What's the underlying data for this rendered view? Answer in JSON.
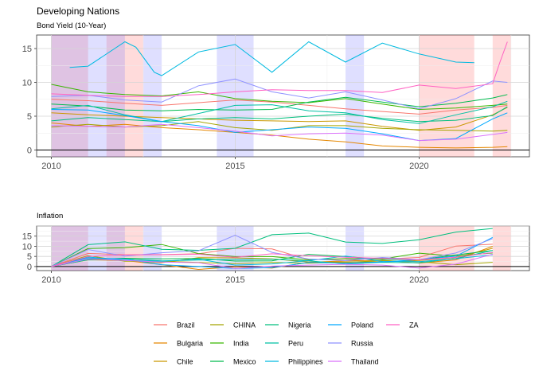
{
  "title": "Developing Nations",
  "chart_data": [
    {
      "type": "line",
      "subtitle": "Bond Yield (10-Year)",
      "x_range": [
        2009.6,
        2023.0
      ],
      "ylim": [
        -1,
        17
      ],
      "x_ticks": [
        2010,
        2015,
        2020
      ],
      "y_ticks": [
        0,
        5,
        10,
        15
      ],
      "grid": true,
      "shaded_periods": [
        {
          "color": "red",
          "start": 2010.0,
          "end": 2011.0
        },
        {
          "color": "blue",
          "start": 2010.0,
          "end": 2011.0
        },
        {
          "color": "blue",
          "start": 2011.0,
          "end": 2011.5
        },
        {
          "color": "red",
          "start": 2011.5,
          "end": 2012.0
        },
        {
          "color": "blue",
          "start": 2011.5,
          "end": 2012.0
        },
        {
          "color": "red",
          "start": 2012.0,
          "end": 2012.5
        },
        {
          "color": "blue",
          "start": 2012.5,
          "end": 2013.0
        },
        {
          "color": "blue",
          "start": 2014.5,
          "end": 2015.5
        },
        {
          "color": "blue",
          "start": 2018.0,
          "end": 2018.5
        },
        {
          "color": "red",
          "start": 2020.0,
          "end": 2021.5
        },
        {
          "color": "red",
          "start": 2022.0,
          "end": 2022.5
        }
      ],
      "series": [
        {
          "name": "Brazil",
          "color": "#F8766D",
          "x": [
            2010,
            2011,
            2012,
            2013,
            2014,
            2015,
            2016,
            2017,
            2018,
            2019,
            2020,
            2021,
            2022,
            2022.4
          ],
          "y": [
            7.5,
            7.3,
            6.9,
            6.6,
            7.0,
            7.4,
            7.1,
            6.6,
            6.1,
            5.7,
            5.3,
            5.9,
            6.3,
            6.6
          ]
        },
        {
          "name": "Bulgaria",
          "color": "#E58700",
          "x": [
            2010,
            2011,
            2012,
            2013,
            2014,
            2015,
            2016,
            2017,
            2018,
            2019,
            2020,
            2021,
            2022,
            2022.4
          ],
          "y": [
            4.0,
            3.5,
            3.8,
            3.3,
            3.0,
            2.6,
            2.2,
            1.6,
            1.2,
            0.6,
            0.4,
            0.3,
            0.4,
            0.5
          ]
        },
        {
          "name": "Chile",
          "color": "#C99800",
          "x": [
            2010,
            2011,
            2012,
            2013,
            2014,
            2015,
            2016,
            2017,
            2018,
            2019,
            2020,
            2021,
            2022,
            2022.4
          ],
          "y": [
            5.5,
            5.2,
            5.0,
            4.8,
            4.6,
            4.4,
            4.3,
            4.2,
            4.3,
            3.5,
            2.9,
            3.4,
            5.2,
            6.3
          ]
        },
        {
          "name": "CHINA",
          "color": "#A3A500",
          "x": [
            2010,
            2011,
            2012,
            2013,
            2014,
            2015,
            2016,
            2017,
            2018,
            2019,
            2020,
            2021,
            2022,
            2022.4
          ],
          "y": [
            3.4,
            3.8,
            3.4,
            3.6,
            4.2,
            3.3,
            2.9,
            3.6,
            3.6,
            3.2,
            3.0,
            2.9,
            2.8,
            2.9
          ]
        },
        {
          "name": "India",
          "color": "#39B600",
          "x": [
            2010,
            2011,
            2012,
            2013,
            2014,
            2015,
            2016,
            2017,
            2018,
            2019,
            2020,
            2021,
            2022,
            2022.4
          ],
          "y": [
            9.7,
            8.6,
            8.2,
            8.0,
            8.6,
            7.6,
            7.2,
            7.0,
            7.6,
            6.8,
            6.0,
            6.2,
            6.6,
            6.8
          ]
        },
        {
          "name": "Mexico",
          "color": "#00BB4E",
          "x": [
            2010,
            2011,
            2012,
            2013,
            2014,
            2015,
            2016,
            2017,
            2018,
            2019,
            2020,
            2021,
            2022,
            2022.4
          ],
          "y": [
            6.8,
            6.5,
            5.9,
            5.8,
            6.0,
            5.9,
            6.0,
            7.1,
            7.8,
            7.1,
            6.4,
            6.9,
            7.7,
            8.2
          ]
        },
        {
          "name": "Nigeria",
          "color": "#00BF7D",
          "x": [
            2010,
            2011,
            2012,
            2013,
            2014,
            2015,
            2016,
            2017,
            2018,
            2019,
            2020,
            2021,
            2022,
            2022.4
          ],
          "y": [
            4.3,
            4.8,
            4.5,
            4.2,
            4.6,
            4.8,
            4.6,
            5.0,
            5.3,
            4.7,
            4.2,
            4.4,
            5.1,
            6.4
          ]
        },
        {
          "name": "Peru",
          "color": "#00C1A3",
          "x": [
            2010,
            2011,
            2012,
            2013,
            2014,
            2015,
            2016,
            2017,
            2018,
            2019,
            2020,
            2021,
            2022,
            2022.4
          ],
          "y": [
            6.1,
            6.6,
            5.2,
            4.2,
            5.4,
            6.6,
            6.7,
            5.8,
            5.5,
            4.5,
            3.9,
            5.2,
            6.4,
            7.2
          ]
        },
        {
          "name": "Philippines",
          "color": "#00BAE0",
          "x": [
            2010.5,
            2011,
            2012,
            2012.3,
            2012.8,
            2013,
            2014,
            2015,
            2016,
            2017,
            2018,
            2019,
            2020,
            2021,
            2021.5
          ],
          "y": [
            12.2,
            12.4,
            16.0,
            15.2,
            11.5,
            11.0,
            14.5,
            15.6,
            11.5,
            16.0,
            13.0,
            15.8,
            14.2,
            13.0,
            12.9
          ]
        },
        {
          "name": "Poland",
          "color": "#00A9FF",
          "x": [
            2010,
            2011,
            2012,
            2013,
            2014,
            2015,
            2016,
            2017,
            2018,
            2019,
            2020,
            2021,
            2022,
            2022.4
          ],
          "y": [
            6.0,
            5.9,
            5.1,
            4.2,
            3.6,
            2.6,
            3.0,
            3.4,
            3.2,
            2.4,
            1.4,
            1.7,
            4.6,
            5.5
          ]
        },
        {
          "name": "Russia",
          "color": "#8F92FF",
          "x": [
            2010,
            2011,
            2012,
            2013,
            2014,
            2015,
            2016,
            2017,
            2018,
            2019,
            2020,
            2021,
            2022,
            2022.4
          ],
          "y": [
            7.9,
            8.1,
            7.4,
            7.1,
            9.5,
            10.5,
            8.6,
            7.7,
            8.6,
            7.4,
            6.1,
            7.6,
            10.2,
            10.0
          ]
        },
        {
          "name": "Thailand",
          "color": "#DB72FB",
          "x": [
            2010,
            2011,
            2012,
            2013,
            2014,
            2015,
            2016,
            2017,
            2018,
            2019,
            2020,
            2021,
            2022,
            2022.4
          ],
          "y": [
            3.6,
            3.5,
            3.4,
            3.8,
            3.3,
            2.8,
            2.1,
            2.4,
            2.5,
            2.2,
            1.4,
            1.6,
            2.3,
            2.6
          ]
        },
        {
          "name": "ZA",
          "color": "#FF61C3",
          "x": [
            2010,
            2011,
            2012,
            2013,
            2014,
            2015,
            2016,
            2017,
            2018,
            2019,
            2020,
            2021,
            2022,
            2022.2,
            2022.4
          ],
          "y": [
            8.3,
            8.1,
            7.9,
            7.9,
            8.2,
            8.6,
            8.9,
            8.8,
            8.8,
            8.5,
            9.6,
            9.1,
            9.8,
            13.0,
            16.0
          ]
        }
      ]
    },
    {
      "type": "line",
      "subtitle": "Inflation",
      "x_range": [
        2009.6,
        2023.0
      ],
      "ylim": [
        -2,
        20
      ],
      "x_ticks": [
        2010,
        2015,
        2020
      ],
      "y_ticks": [
        0,
        5,
        10,
        15
      ],
      "grid": true,
      "shaded_periods": [
        {
          "color": "red",
          "start": 2010.0,
          "end": 2011.0
        },
        {
          "color": "blue",
          "start": 2010.0,
          "end": 2011.0
        },
        {
          "color": "blue",
          "start": 2011.0,
          "end": 2011.5
        },
        {
          "color": "red",
          "start": 2011.5,
          "end": 2012.0
        },
        {
          "color": "blue",
          "start": 2011.5,
          "end": 2012.0
        },
        {
          "color": "red",
          "start": 2012.0,
          "end": 2012.5
        },
        {
          "color": "blue",
          "start": 2012.5,
          "end": 2013.0
        },
        {
          "color": "blue",
          "start": 2014.5,
          "end": 2015.5
        },
        {
          "color": "blue",
          "start": 2018.0,
          "end": 2018.5
        },
        {
          "color": "red",
          "start": 2020.0,
          "end": 2021.5
        },
        {
          "color": "red",
          "start": 2022.0,
          "end": 2022.5
        }
      ],
      "series": [
        {
          "name": "Brazil",
          "color": "#F8766D",
          "x": [
            2010,
            2011,
            2012,
            2013,
            2014,
            2015,
            2016,
            2017,
            2018,
            2019,
            2020,
            2021,
            2022
          ],
          "y": [
            0,
            6.5,
            5.8,
            5.9,
            6.3,
            9.0,
            8.7,
            3.4,
            3.7,
            3.7,
            4.5,
            10.1,
            11.0
          ]
        },
        {
          "name": "Bulgaria",
          "color": "#E58700",
          "x": [
            2010,
            2011,
            2012,
            2013,
            2014,
            2015,
            2016,
            2017,
            2018,
            2019,
            2020,
            2021,
            2022
          ],
          "y": [
            0,
            4.2,
            3.0,
            0.9,
            -1.4,
            -0.1,
            -0.8,
            2.1,
            2.8,
            3.1,
            1.7,
            3.3,
            10.0
          ]
        },
        {
          "name": "Chile",
          "color": "#C99800",
          "x": [
            2010,
            2011,
            2012,
            2013,
            2014,
            2015,
            2016,
            2017,
            2018,
            2019,
            2020,
            2021,
            2022
          ],
          "y": [
            0,
            3.3,
            3.0,
            1.9,
            4.4,
            4.3,
            3.8,
            2.2,
            2.3,
            2.3,
            3.0,
            4.5,
            9.0
          ]
        },
        {
          "name": "CHINA",
          "color": "#A3A500",
          "x": [
            2010,
            2011,
            2012,
            2013,
            2014,
            2015,
            2016,
            2017,
            2018,
            2019,
            2020,
            2021,
            2022
          ],
          "y": [
            0,
            5.4,
            2.6,
            2.6,
            2.0,
            1.4,
            2.0,
            1.6,
            2.1,
            2.9,
            2.4,
            0.9,
            2.1
          ]
        },
        {
          "name": "India",
          "color": "#39B600",
          "x": [
            2010,
            2011,
            2012,
            2013,
            2014,
            2015,
            2016,
            2017,
            2018,
            2019,
            2020,
            2021,
            2022
          ],
          "y": [
            0,
            8.9,
            9.3,
            10.9,
            6.4,
            4.9,
            4.9,
            3.3,
            3.9,
            3.7,
            6.6,
            5.1,
            6.7
          ]
        },
        {
          "name": "Mexico",
          "color": "#00BB4E",
          "x": [
            2010,
            2011,
            2012,
            2013,
            2014,
            2015,
            2016,
            2017,
            2018,
            2019,
            2020,
            2021,
            2022
          ],
          "y": [
            0,
            3.4,
            4.1,
            3.8,
            4.0,
            2.7,
            2.8,
            6.0,
            4.9,
            3.6,
            3.4,
            5.7,
            7.9
          ]
        },
        {
          "name": "Nigeria",
          "color": "#00BF7D",
          "x": [
            2010,
            2011,
            2012,
            2013,
            2014,
            2015,
            2016,
            2017,
            2018,
            2019,
            2020,
            2021,
            2022
          ],
          "y": [
            0,
            10.8,
            12.2,
            8.5,
            8.0,
            9.0,
            15.7,
            16.5,
            12.1,
            11.4,
            13.2,
            17.0,
            18.8
          ]
        },
        {
          "name": "Peru",
          "color": "#00C1A3",
          "x": [
            2010,
            2011,
            2012,
            2013,
            2014,
            2015,
            2016,
            2017,
            2018,
            2019,
            2020,
            2021,
            2022
          ],
          "y": [
            0,
            3.4,
            3.7,
            2.8,
            3.2,
            3.5,
            3.6,
            2.8,
            1.3,
            2.1,
            1.8,
            4.0,
            7.9
          ]
        },
        {
          "name": "Philippines",
          "color": "#00BAE0",
          "x": [
            2010,
            2011,
            2012,
            2013,
            2014,
            2015,
            2016,
            2017,
            2018,
            2019,
            2020,
            2021,
            2022
          ],
          "y": [
            0,
            4.7,
            3.0,
            2.6,
            3.6,
            0.7,
            1.3,
            2.9,
            5.2,
            2.5,
            2.4,
            3.9,
            5.8
          ]
        },
        {
          "name": "Poland",
          "color": "#00A9FF",
          "x": [
            2010,
            2011,
            2012,
            2013,
            2014,
            2015,
            2016,
            2017,
            2018,
            2019,
            2020,
            2021,
            2022
          ],
          "y": [
            0,
            4.2,
            3.7,
            0.9,
            0.0,
            -0.9,
            -0.6,
            2.0,
            1.6,
            2.3,
            3.4,
            5.1,
            14.4
          ]
        },
        {
          "name": "Russia",
          "color": "#8F92FF",
          "x": [
            2010,
            2011,
            2012,
            2013,
            2014,
            2015,
            2016,
            2017,
            2018,
            2019,
            2020,
            2021,
            2022
          ],
          "y": [
            0,
            8.4,
            5.1,
            6.8,
            7.8,
            15.5,
            7.0,
            3.7,
            2.9,
            4.5,
            3.4,
            6.7,
            13.8
          ]
        },
        {
          "name": "Thailand",
          "color": "#DB72FB",
          "x": [
            2010,
            2011,
            2012,
            2013,
            2014,
            2015,
            2016,
            2017,
            2018,
            2019,
            2020,
            2021,
            2022
          ],
          "y": [
            0,
            3.8,
            3.0,
            2.2,
            1.9,
            -0.9,
            0.2,
            0.7,
            1.1,
            0.7,
            -0.8,
            1.2,
            6.1
          ]
        },
        {
          "name": "ZA",
          "color": "#FF61C3",
          "x": [
            2010,
            2011,
            2012,
            2013,
            2014,
            2015,
            2016,
            2017,
            2018,
            2019,
            2020,
            2021,
            2022
          ],
          "y": [
            0,
            5.0,
            5.7,
            5.8,
            6.1,
            4.6,
            6.3,
            5.3,
            4.6,
            4.1,
            3.3,
            4.6,
            6.9
          ]
        }
      ]
    }
  ]
}
